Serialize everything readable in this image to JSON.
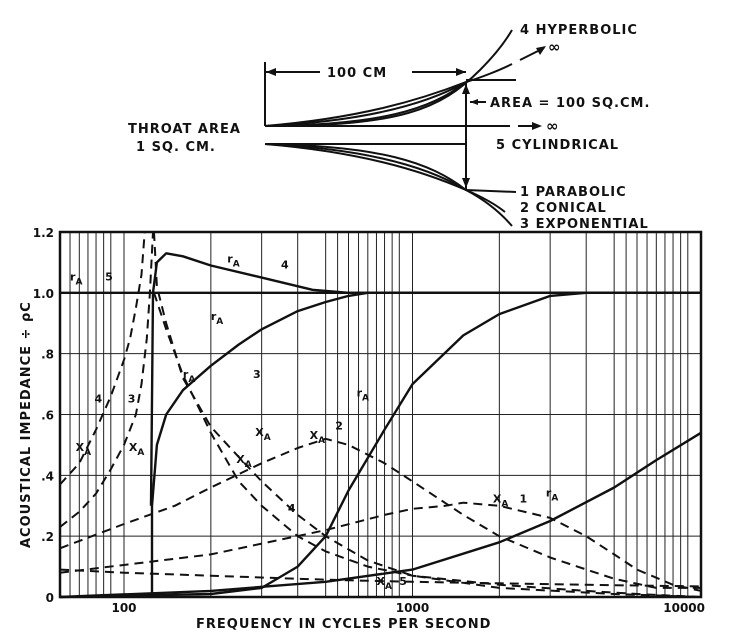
{
  "horn_diagram": {
    "labels": {
      "hyperbolic": "4 HYPERBOLIC",
      "infinity_up": "∞",
      "length": "100 CM",
      "area": "AREA = 100 SQ.CM.",
      "throat_line1": "THROAT AREA",
      "throat_line2": "1  SQ. CM.",
      "infinity_mid": "∞",
      "cylindrical": "5 CYLINDRICAL",
      "parabolic": "1 PARABOLIC",
      "conical": "2 CONICAL",
      "exponential": "3 EXPONENTIAL"
    }
  },
  "chart_data": {
    "type": "line",
    "title": "",
    "xlabel": "FREQUENCY  IN  CYCLES  PER  SECOND",
    "ylabel": "ACOUSTICAL  IMPEDANCE ÷ ρC",
    "xscale": "log",
    "xlim": [
      60,
      10000
    ],
    "ylim": [
      0,
      1.2
    ],
    "grid": true,
    "x_tick_labels": [
      {
        "value": 100,
        "label": "100"
      },
      {
        "value": 1000,
        "label": "1000"
      },
      {
        "value": 10000,
        "label": "10000"
      }
    ],
    "y_tick_labels": [
      {
        "value": 0,
        "label": "0"
      },
      {
        "value": 0.2,
        "label": ".2"
      },
      {
        "value": 0.4,
        "label": ".4"
      },
      {
        "value": 0.6,
        "label": ".6"
      },
      {
        "value": 0.8,
        "label": ".8"
      },
      {
        "value": 1.0,
        "label": "1.0"
      },
      {
        "value": 1.2,
        "label": "1.2"
      }
    ],
    "series": [
      {
        "id": "r4",
        "style": "solid",
        "points": [
          [
            124,
            0.3
          ],
          [
            126,
            1.0
          ],
          [
            130,
            1.1
          ],
          [
            140,
            1.13
          ],
          [
            160,
            1.12
          ],
          [
            200,
            1.09
          ],
          [
            300,
            1.05
          ],
          [
            450,
            1.01
          ],
          [
            600,
            1.0
          ],
          [
            10000,
            1.0
          ]
        ]
      },
      {
        "id": "r3",
        "style": "solid",
        "points": [
          [
            125,
            0
          ],
          [
            125,
            0.3
          ],
          [
            130,
            0.5
          ],
          [
            140,
            0.6
          ],
          [
            160,
            0.68
          ],
          [
            200,
            0.76
          ],
          [
            250,
            0.83
          ],
          [
            300,
            0.88
          ],
          [
            400,
            0.94
          ],
          [
            500,
            0.97
          ],
          [
            600,
            0.99
          ],
          [
            700,
            1.0
          ],
          [
            10000,
            1.0
          ]
        ]
      },
      {
        "id": "r2",
        "style": "solid",
        "points": [
          [
            60,
            0
          ],
          [
            200,
            0.01
          ],
          [
            300,
            0.03
          ],
          [
            400,
            0.1
          ],
          [
            500,
            0.2
          ],
          [
            600,
            0.35
          ],
          [
            800,
            0.55
          ],
          [
            1000,
            0.7
          ],
          [
            1500,
            0.86
          ],
          [
            2000,
            0.93
          ],
          [
            3000,
            0.99
          ],
          [
            4000,
            1.0
          ],
          [
            10000,
            1.0
          ]
        ]
      },
      {
        "id": "r1",
        "style": "solid",
        "points": [
          [
            60,
            0
          ],
          [
            200,
            0.02
          ],
          [
            500,
            0.05
          ],
          [
            1000,
            0.09
          ],
          [
            2000,
            0.18
          ],
          [
            3000,
            0.25
          ],
          [
            5000,
            0.36
          ],
          [
            7000,
            0.45
          ],
          [
            10000,
            0.54
          ]
        ]
      },
      {
        "id": "r5",
        "style": "solid",
        "points": [
          [
            60,
            1.0
          ],
          [
            10000,
            1.0
          ]
        ]
      },
      {
        "id": "x4",
        "style": "dashed",
        "points": [
          [
            60,
            0.37
          ],
          [
            70,
            0.44
          ],
          [
            80,
            0.55
          ],
          [
            90,
            0.66
          ],
          [
            100,
            0.78
          ],
          [
            105,
            0.85
          ],
          [
            110,
            0.95
          ],
          [
            115,
            1.06
          ],
          [
            118,
            1.2
          ]
        ]
      },
      {
        "id": "x3",
        "style": "dashed",
        "points": [
          [
            60,
            0.23
          ],
          [
            70,
            0.28
          ],
          [
            80,
            0.34
          ],
          [
            90,
            0.42
          ],
          [
            100,
            0.5
          ],
          [
            110,
            0.6
          ],
          [
            115,
            0.7
          ],
          [
            120,
            0.85
          ],
          [
            123,
            1.0
          ],
          [
            126,
            1.2
          ]
        ]
      },
      {
        "id": "x4b",
        "style": "dashed",
        "points": [
          [
            127,
            1.2
          ],
          [
            130,
            1.02
          ],
          [
            140,
            0.9
          ],
          [
            160,
            0.72
          ],
          [
            200,
            0.56
          ],
          [
            250,
            0.46
          ],
          [
            300,
            0.38
          ],
          [
            400,
            0.27
          ],
          [
            500,
            0.2
          ],
          [
            700,
            0.12
          ],
          [
            1000,
            0.07
          ],
          [
            2000,
            0.03
          ],
          [
            5000,
            0.01
          ],
          [
            10000,
            0
          ]
        ]
      },
      {
        "id": "x3b",
        "style": "dashed",
        "points": [
          [
            127,
            1.0
          ],
          [
            140,
            0.88
          ],
          [
            160,
            0.73
          ],
          [
            200,
            0.54
          ],
          [
            250,
            0.38
          ],
          [
            300,
            0.3
          ],
          [
            400,
            0.2
          ],
          [
            500,
            0.15
          ],
          [
            700,
            0.1
          ],
          [
            1000,
            0.07
          ],
          [
            2000,
            0.04
          ],
          [
            4000,
            0.02
          ],
          [
            6000,
            0.01
          ],
          [
            10000,
            0
          ]
        ]
      },
      {
        "id": "x2",
        "style": "dashed",
        "points": [
          [
            60,
            0.16
          ],
          [
            100,
            0.24
          ],
          [
            150,
            0.3
          ],
          [
            200,
            0.36
          ],
          [
            300,
            0.44
          ],
          [
            400,
            0.49
          ],
          [
            500,
            0.52
          ],
          [
            600,
            0.5
          ],
          [
            800,
            0.44
          ],
          [
            1000,
            0.38
          ],
          [
            1500,
            0.27
          ],
          [
            2000,
            0.2
          ],
          [
            3000,
            0.13
          ],
          [
            5000,
            0.06
          ],
          [
            7000,
            0.03
          ],
          [
            10000,
            0.03
          ]
        ]
      },
      {
        "id": "x1",
        "style": "dashed",
        "points": [
          [
            60,
            0.08
          ],
          [
            200,
            0.14
          ],
          [
            500,
            0.22
          ],
          [
            800,
            0.27
          ],
          [
            1000,
            0.29
          ],
          [
            1300,
            0.3
          ],
          [
            1500,
            0.31
          ],
          [
            2000,
            0.3
          ],
          [
            3000,
            0.26
          ],
          [
            4000,
            0.2
          ],
          [
            5000,
            0.14
          ],
          [
            6000,
            0.09
          ],
          [
            8000,
            0.04
          ],
          [
            10000,
            0.02
          ]
        ]
      },
      {
        "id": "x5",
        "style": "dashed",
        "points": [
          [
            60,
            0.09
          ],
          [
            100,
            0.08
          ],
          [
            200,
            0.07
          ],
          [
            400,
            0.06
          ],
          [
            600,
            0.055
          ],
          [
            1000,
            0.05
          ],
          [
            2000,
            0.045
          ],
          [
            4000,
            0.04
          ],
          [
            10000,
            0.035
          ]
        ]
      }
    ],
    "annotations": [
      {
        "text": "rA",
        "x": 65,
        "y": 1.04
      },
      {
        "text": "5",
        "x": 86,
        "y": 1.04
      },
      {
        "text": "rA",
        "x": 228,
        "y": 1.1
      },
      {
        "text": "4",
        "x": 350,
        "y": 1.08
      },
      {
        "text": "rA",
        "x": 200,
        "y": 0.91
      },
      {
        "text": "3",
        "x": 280,
        "y": 0.72
      },
      {
        "text": "rA",
        "x": 160,
        "y": 0.72
      },
      {
        "text": "4",
        "x": 79,
        "y": 0.64
      },
      {
        "text": "3",
        "x": 103,
        "y": 0.64
      },
      {
        "text": "XA",
        "x": 68,
        "y": 0.48
      },
      {
        "text": "XA",
        "x": 104,
        "y": 0.48
      },
      {
        "text": "XA",
        "x": 285,
        "y": 0.53
      },
      {
        "text": "XA",
        "x": 245,
        "y": 0.44
      },
      {
        "text": "4",
        "x": 370,
        "y": 0.28
      },
      {
        "text": "XA",
        "x": 440,
        "y": 0.52
      },
      {
        "text": "2",
        "x": 540,
        "y": 0.55
      },
      {
        "text": "rA",
        "x": 640,
        "y": 0.66
      },
      {
        "text": "XA",
        "x": 1900,
        "y": 0.31
      },
      {
        "text": "1",
        "x": 2350,
        "y": 0.31
      },
      {
        "text": "rA",
        "x": 2900,
        "y": 0.33
      },
      {
        "text": "XA",
        "x": 750,
        "y": 0.04
      },
      {
        "text": "5",
        "x": 900,
        "y": 0.04
      }
    ]
  }
}
